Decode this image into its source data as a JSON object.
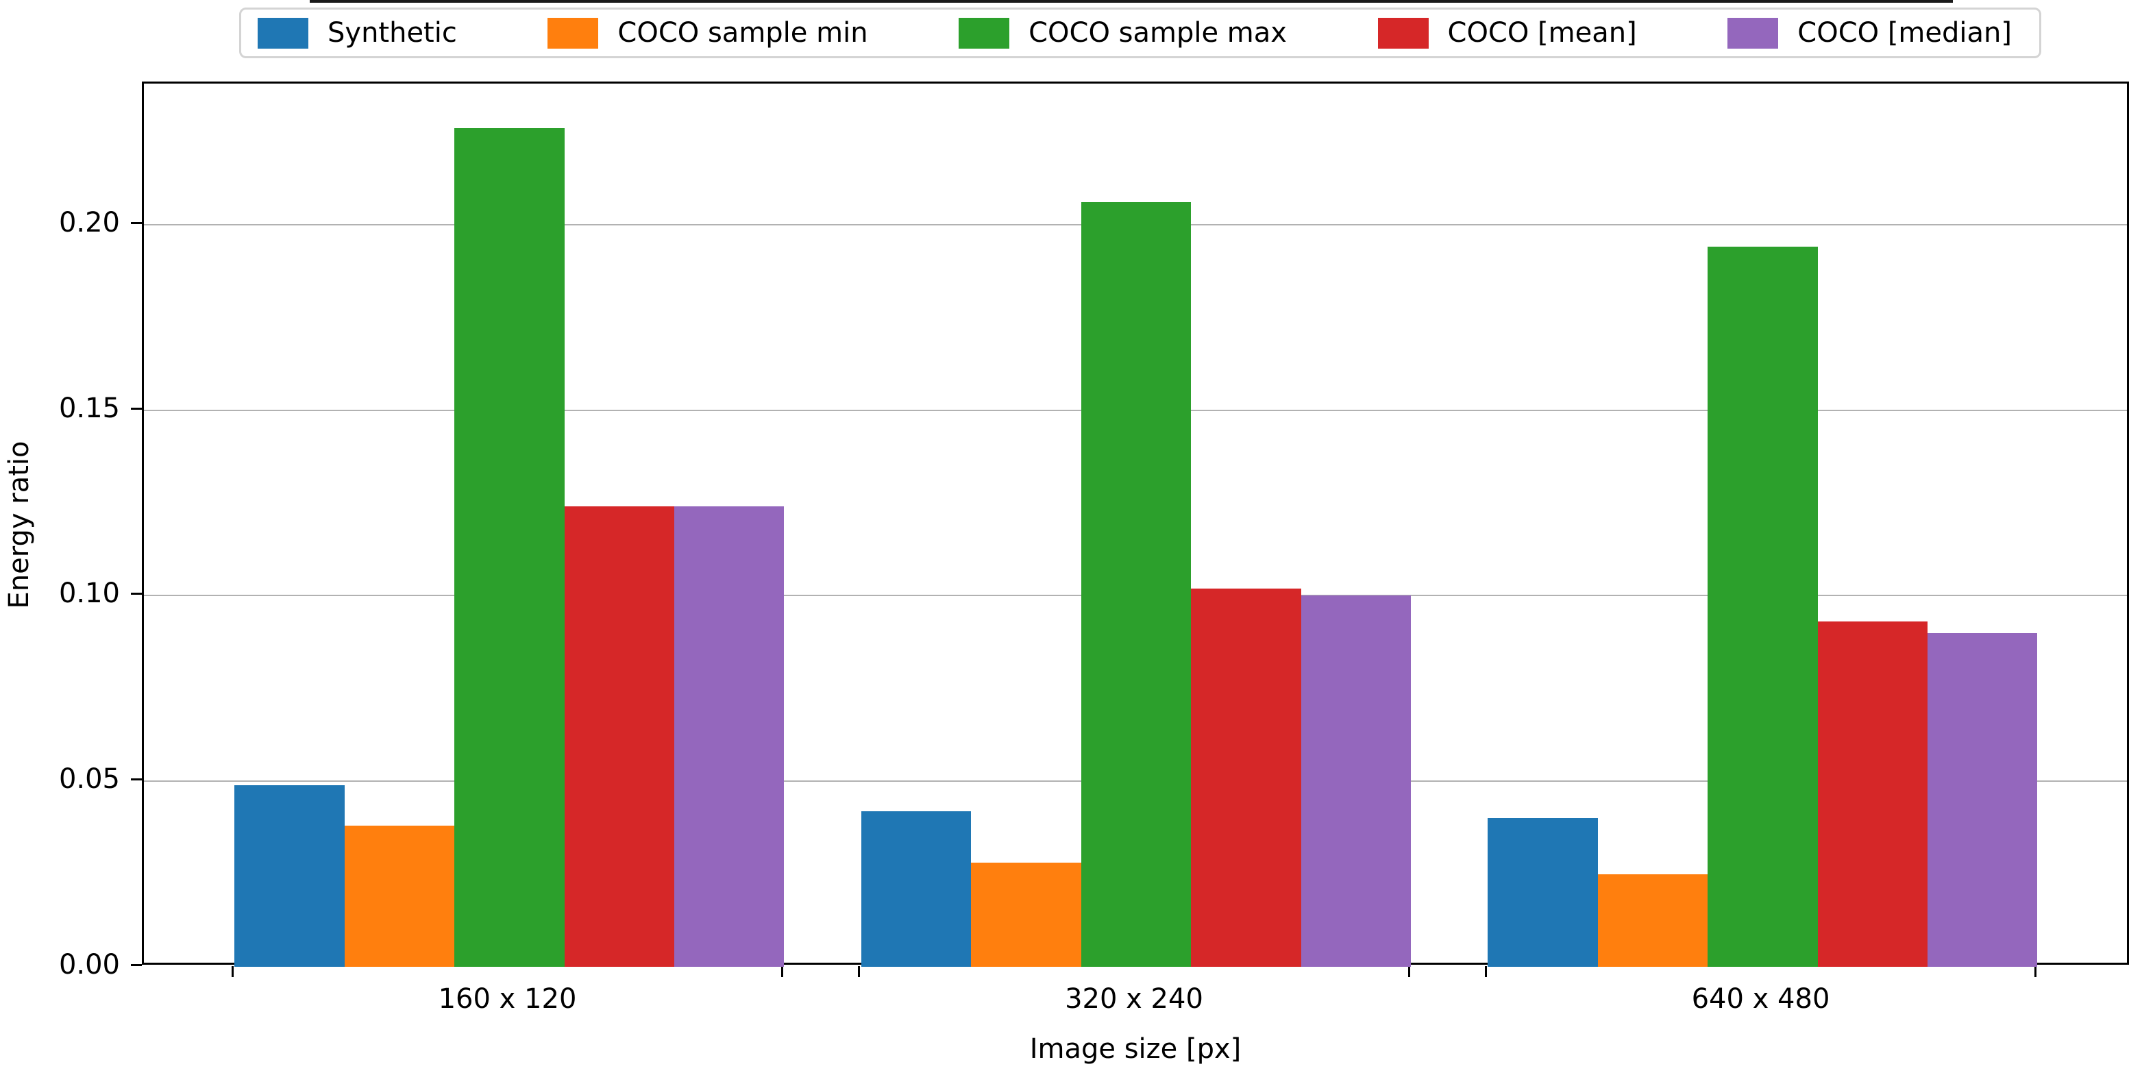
{
  "figure": {
    "background": "#ffffff",
    "spine_color": "#000000",
    "grid_color": "#b2b2b2"
  },
  "chart_data": {
    "type": "bar",
    "title": "",
    "xlabel": "Image size [px]",
    "ylabel": "Energy ratio",
    "categories": [
      "160 x 120",
      "320 x 240",
      "640 x 480"
    ],
    "series": [
      {
        "name": "Synthetic",
        "color": "#1f77b4",
        "values": [
          0.049,
          0.042,
          0.04
        ]
      },
      {
        "name": "COCO sample min",
        "color": "#ff7f0e",
        "values": [
          0.038,
          0.028,
          0.025
        ]
      },
      {
        "name": "COCO sample max",
        "color": "#2ca02c",
        "values": [
          0.226,
          0.206,
          0.194
        ]
      },
      {
        "name": "COCO [mean]",
        "color": "#d62728",
        "values": [
          0.124,
          0.102,
          0.093
        ]
      },
      {
        "name": "COCO [median]",
        "color": "#9467bd",
        "values": [
          0.124,
          0.1,
          0.09
        ]
      }
    ],
    "ylim": [
      0,
      0.238
    ],
    "yticks": [
      0.0,
      0.05,
      0.1,
      0.15,
      0.2
    ],
    "ytick_labels": [
      "0.00",
      "0.05",
      "0.10",
      "0.15",
      "0.20"
    ],
    "grid": "horizontal",
    "legend_position": "top-expanded",
    "bar_group_total_width_frac": 0.877,
    "x_ticks_at_group_edges": true
  }
}
